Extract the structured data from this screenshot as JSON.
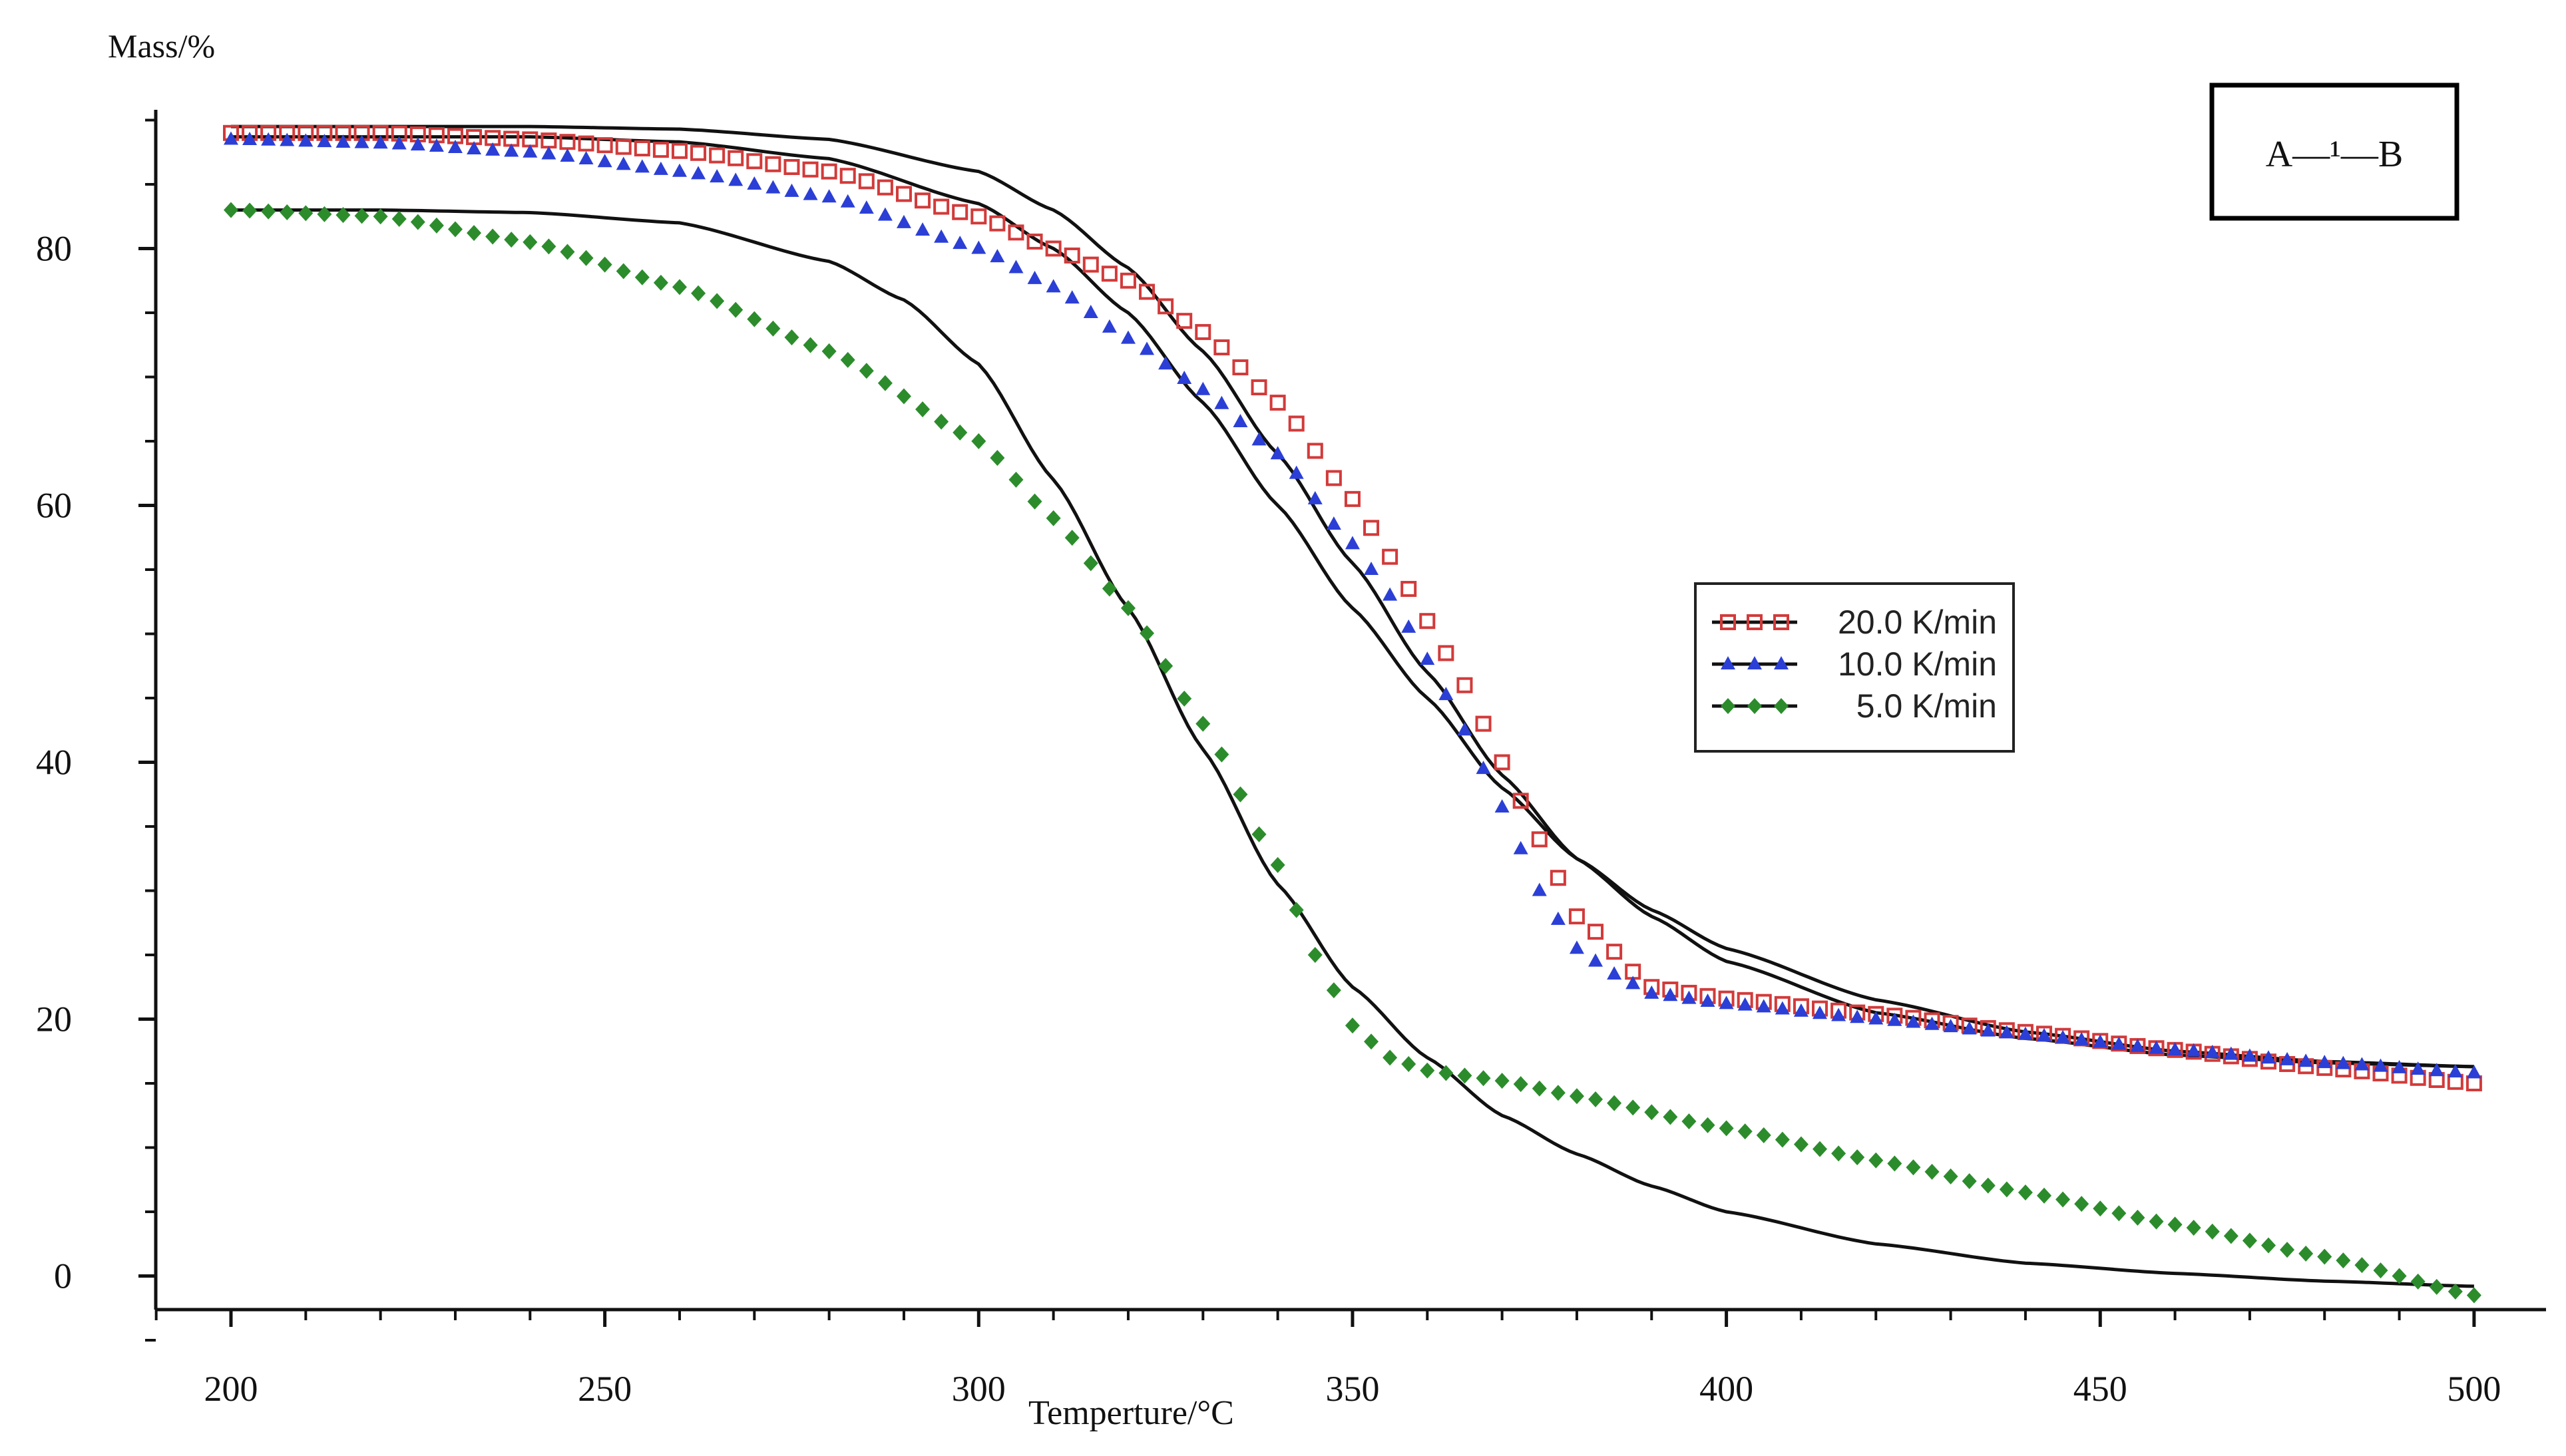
{
  "chart_data": {
    "type": "scatter",
    "ylabel": "Mass/%",
    "xlabel": "Temperture/°C",
    "annotation": "A—¹—B",
    "xlim": [
      190,
      507
    ],
    "ylim": [
      -5,
      94
    ],
    "xticks": [
      200,
      250,
      300,
      350,
      400,
      450,
      500
    ],
    "xtick_labels": [
      "200",
      "250",
      "300",
      "350",
      "400",
      "450",
      "500"
    ],
    "yticks": [
      0,
      20,
      40,
      60,
      80
    ],
    "ytick_labels": [
      "0",
      "20",
      "40",
      "60",
      "80"
    ],
    "grid": false,
    "legend_position": "center-right",
    "series": [
      {
        "name": "20.0 K/min",
        "marker": "square",
        "color": "#d23a3a",
        "x": [
          200,
          220,
          240,
          260,
          280,
          300,
          310,
          320,
          330,
          340,
          350,
          355,
          360,
          365,
          370,
          375,
          380,
          390,
          400,
          420,
          440,
          460,
          480,
          500
        ],
        "y": [
          89,
          89,
          88.5,
          87.6,
          86,
          82.5,
          80,
          77.5,
          73.5,
          68,
          60.5,
          56,
          51,
          46,
          40,
          34,
          28,
          22.5,
          21.6,
          20.4,
          19,
          17.6,
          16.2,
          15
        ]
      },
      {
        "name": "10.0 K/min",
        "marker": "triangle",
        "color": "#2b3fd6",
        "x": [
          200,
          220,
          240,
          260,
          280,
          300,
          310,
          320,
          330,
          340,
          350,
          355,
          360,
          365,
          370,
          375,
          380,
          385,
          390,
          400,
          420,
          440,
          460,
          480,
          500
        ],
        "y": [
          88.5,
          88.2,
          87.5,
          86,
          84,
          80,
          77,
          73,
          69,
          64,
          57,
          53,
          48,
          42.5,
          36.5,
          30,
          25.5,
          23.5,
          22,
          21.2,
          20,
          18.8,
          17.6,
          16.6,
          15.8
        ]
      },
      {
        "name": "5.0 K/min",
        "marker": "diamond",
        "color": "#2c8c2c",
        "x": [
          200,
          220,
          240,
          260,
          280,
          300,
          310,
          320,
          330,
          340,
          345,
          350,
          355,
          360,
          365,
          370,
          380,
          400,
          420,
          440,
          460,
          480,
          500
        ],
        "y": [
          83,
          82.5,
          80.5,
          77,
          72,
          65,
          59,
          52,
          43,
          32,
          25,
          19.5,
          17,
          16,
          15.6,
          15.2,
          14,
          11.5,
          9,
          6.5,
          4,
          1.5,
          -1.5
        ]
      }
    ],
    "fit_curves": [
      {
        "name": "fit for 20.0 K/min",
        "color": "#111111",
        "x": [
          200,
          220,
          240,
          260,
          280,
          300,
          310,
          320,
          330,
          340,
          350,
          360,
          370,
          380,
          390,
          400,
          420,
          440,
          460,
          480,
          500
        ],
        "y": [
          89.5,
          89.5,
          89.5,
          89.3,
          88.5,
          86,
          83,
          78.5,
          72,
          64,
          55.5,
          47,
          39,
          32.5,
          28,
          24.5,
          20.5,
          18.5,
          17.2,
          16.6,
          16.3
        ]
      },
      {
        "name": "fit for 10.0 K/min",
        "color": "#111111",
        "x": [
          200,
          220,
          240,
          260,
          280,
          300,
          310,
          320,
          330,
          340,
          350,
          360,
          370,
          380,
          390,
          400,
          420,
          440,
          460,
          480,
          500
        ],
        "y": [
          88.7,
          88.7,
          88.7,
          88.3,
          87,
          83.5,
          80,
          75,
          68,
          60,
          52,
          45,
          38,
          32.5,
          28.5,
          25.5,
          21.5,
          19,
          17.5,
          16.7,
          16.3
        ]
      },
      {
        "name": "fit for 5.0 K/min",
        "color": "#111111",
        "x": [
          200,
          220,
          240,
          260,
          280,
          290,
          300,
          310,
          320,
          330,
          340,
          350,
          360,
          370,
          380,
          390,
          400,
          420,
          440,
          460,
          480,
          500
        ],
        "y": [
          83,
          83,
          82.8,
          82,
          79,
          76,
          71,
          62,
          52,
          41,
          30.5,
          22.5,
          17,
          12.5,
          9.5,
          7,
          5,
          2.5,
          1,
          0.2,
          -0.4,
          -0.8
        ]
      }
    ]
  }
}
